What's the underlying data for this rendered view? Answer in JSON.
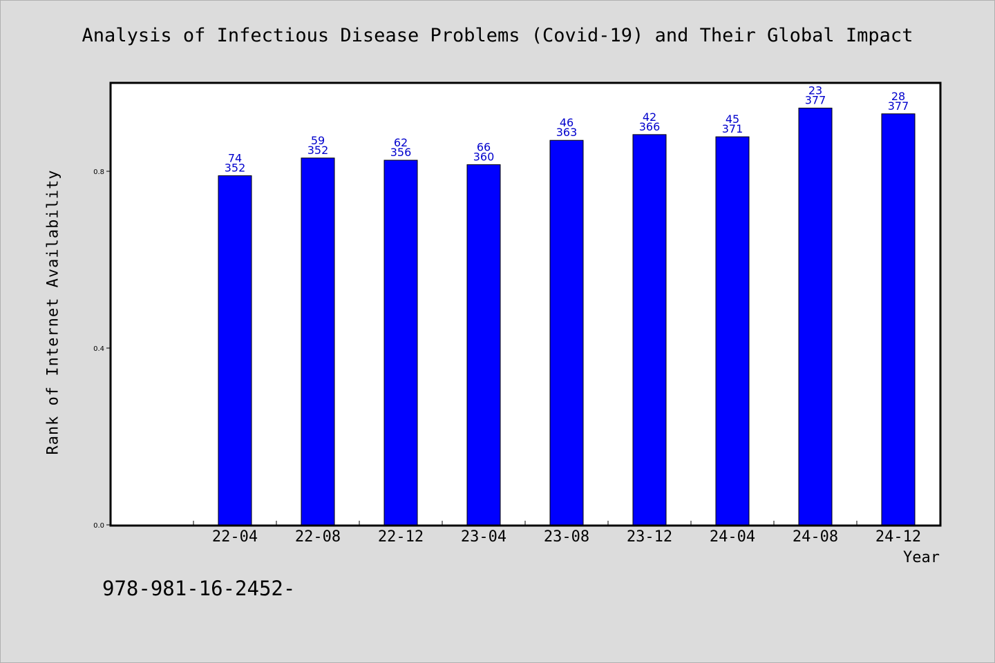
{
  "chart_data": {
    "type": "bar",
    "title": "Analysis of Infectious Disease Problems (Covid-19) and Their Global Impact",
    "xlabel": "Year",
    "ylabel": "Rank of Internet Availability",
    "categories": [
      "22-04",
      "22-08",
      "22-12",
      "23-04",
      "23-08",
      "23-12",
      "24-04",
      "24-08",
      "24-12"
    ],
    "values": [
      0.79,
      0.83,
      0.825,
      0.815,
      0.87,
      0.883,
      0.878,
      0.943,
      0.93
    ],
    "bar_labels": [
      {
        "rank": "74",
        "total": "352"
      },
      {
        "rank": "59",
        "total": "352"
      },
      {
        "rank": "62",
        "total": "356"
      },
      {
        "rank": "66",
        "total": "360"
      },
      {
        "rank": "46",
        "total": "363"
      },
      {
        "rank": "42",
        "total": "366"
      },
      {
        "rank": "45",
        "total": "371"
      },
      {
        "rank": "23",
        "total": "377"
      },
      {
        "rank": "28",
        "total": "377"
      }
    ],
    "yticks": [
      "0.0",
      "0.4",
      "0.8"
    ],
    "ylim": [
      0,
      1.0
    ],
    "grid": false,
    "legend": "none",
    "bar_color": "#0000ff",
    "label_color": "#0000cc",
    "plot_background": "#ffffff",
    "figure_background": "#dcdcdc"
  },
  "footer": {
    "code": "978-981-16-2452-"
  }
}
